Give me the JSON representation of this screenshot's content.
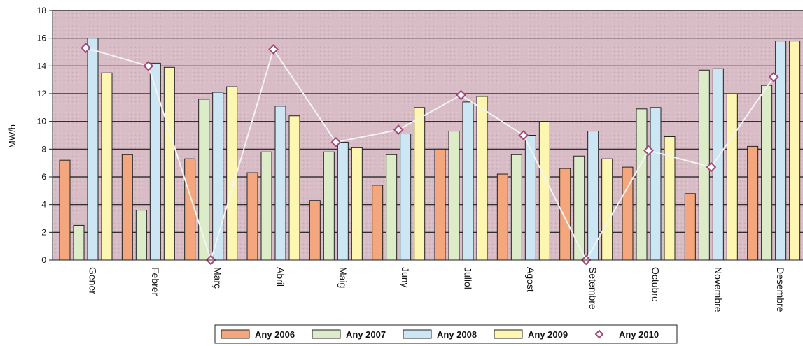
{
  "chart_data": {
    "type": "bar",
    "ylabel": "MW/h",
    "ylim": [
      0,
      18
    ],
    "yticks": [
      0,
      2,
      4,
      6,
      8,
      10,
      12,
      14,
      16,
      18
    ],
    "ytick_labels": [
      "0",
      "2",
      "4",
      "6",
      "8",
      "10",
      "12",
      "14",
      "16",
      "18"
    ],
    "grid": true,
    "legend_position": "bottom",
    "categories": [
      "Gener",
      "Febrer",
      "Març",
      "Abril",
      "Maig",
      "Juny",
      "Juliol",
      "Agost",
      "Setembre",
      "Octubre",
      "Novembre",
      "Desembre"
    ],
    "series": [
      {
        "name": "Any 2006",
        "type": "bar",
        "color": "#f4a77c",
        "values": [
          7.2,
          7.6,
          7.3,
          6.3,
          4.3,
          5.4,
          8.0,
          6.2,
          6.6,
          6.7,
          4.8,
          8.2
        ]
      },
      {
        "name": "Any 2007",
        "type": "bar",
        "color": "#dcebc8",
        "values": [
          2.5,
          3.6,
          11.6,
          7.8,
          7.8,
          7.6,
          9.3,
          7.6,
          7.5,
          10.9,
          13.7,
          12.6
        ]
      },
      {
        "name": "Any 2008",
        "type": "bar",
        "color": "#cde6f4",
        "values": [
          16.0,
          14.2,
          12.1,
          11.1,
          8.5,
          9.1,
          11.4,
          9.0,
          9.3,
          11.0,
          13.8,
          15.8
        ]
      },
      {
        "name": "Any 2009",
        "type": "bar",
        "color": "#fcf6b0",
        "values": [
          13.5,
          13.9,
          12.5,
          10.4,
          8.1,
          11.0,
          11.8,
          10.0,
          7.3,
          8.9,
          12.0,
          15.8
        ]
      },
      {
        "name": "Any 2010",
        "type": "line",
        "color": "#a24a78",
        "values": [
          15.3,
          14.0,
          0.0,
          15.2,
          8.5,
          9.4,
          11.9,
          9.0,
          0.0,
          7.9,
          6.7,
          13.2
        ]
      }
    ]
  }
}
